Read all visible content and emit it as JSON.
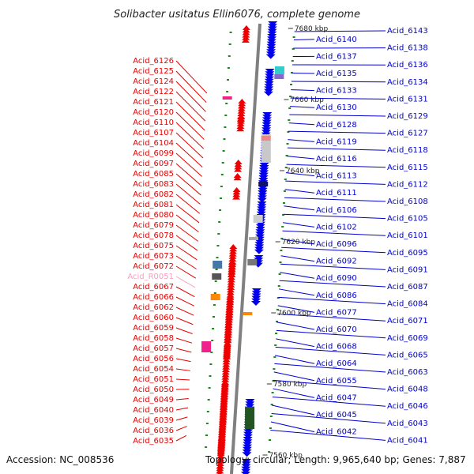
{
  "title": "Solibacter usitatus Ellin6076, complete genome",
  "footer": {
    "accession": "Accession: NC_008536",
    "topology": "Topology: circular; Length: 9,965,640 bp; Genes: 7,887"
  },
  "colors": {
    "left_labels": "#e60000",
    "left_label_pseudo": "#f4a0c0",
    "right_labels": "#0000cc",
    "backbone": "#808080",
    "forward_strand": "#ee0000",
    "reverse_strand": "#0000ee",
    "tick": "#1a8a1a"
  },
  "scale_labels": [
    "7680 kbp",
    "7660 kbp",
    "7640 kbp",
    "7620 kbp",
    "7600 kbp",
    "7580 kbp",
    "7560 kbp"
  ],
  "left_genes": [
    {
      "id": "Acid_6126"
    },
    {
      "id": "Acid_6125"
    },
    {
      "id": "Acid_6124"
    },
    {
      "id": "Acid_6122"
    },
    {
      "id": "Acid_6121"
    },
    {
      "id": "Acid_6120"
    },
    {
      "id": "Acid_6110"
    },
    {
      "id": "Acid_6107"
    },
    {
      "id": "Acid_6104"
    },
    {
      "id": "Acid_6099"
    },
    {
      "id": "Acid_6097"
    },
    {
      "id": "Acid_6085"
    },
    {
      "id": "Acid_6083"
    },
    {
      "id": "Acid_6082"
    },
    {
      "id": "Acid_6081"
    },
    {
      "id": "Acid_6080"
    },
    {
      "id": "Acid_6079"
    },
    {
      "id": "Acid_6078"
    },
    {
      "id": "Acid_6075"
    },
    {
      "id": "Acid_6073"
    },
    {
      "id": "Acid_6072"
    },
    {
      "id": "Acid_R0051",
      "pseudo": true
    },
    {
      "id": "Acid_6067"
    },
    {
      "id": "Acid_6066"
    },
    {
      "id": "Acid_6062"
    },
    {
      "id": "Acid_6060"
    },
    {
      "id": "Acid_6059"
    },
    {
      "id": "Acid_6058"
    },
    {
      "id": "Acid_6057"
    },
    {
      "id": "Acid_6056"
    },
    {
      "id": "Acid_6054"
    },
    {
      "id": "Acid_6051"
    },
    {
      "id": "Acid_6050"
    },
    {
      "id": "Acid_6049"
    },
    {
      "id": "Acid_6040"
    },
    {
      "id": "Acid_6039"
    },
    {
      "id": "Acid_6036"
    },
    {
      "id": "Acid_6035"
    }
  ],
  "right_genes": [
    "Acid_6143",
    "Acid_6140",
    "Acid_6138",
    "Acid_6137",
    "Acid_6136",
    "Acid_6135",
    "Acid_6134",
    "Acid_6133",
    "Acid_6131",
    "Acid_6130",
    "Acid_6129",
    "Acid_6128",
    "Acid_6127",
    "Acid_6119",
    "Acid_6118",
    "Acid_6116",
    "Acid_6115",
    "Acid_6113",
    "Acid_6112",
    "Acid_6111",
    "Acid_6108",
    "Acid_6106",
    "Acid_6105",
    "Acid_6102",
    "Acid_6101",
    "Acid_6096",
    "Acid_6095",
    "Acid_6092",
    "Acid_6091",
    "Acid_6090",
    "Acid_6087",
    "Acid_6086",
    "Acid_6084",
    "Acid_6077",
    "Acid_6071",
    "Acid_6070",
    "Acid_6069",
    "Acid_6068",
    "Acid_6065",
    "Acid_6064",
    "Acid_6063",
    "Acid_6055",
    "Acid_6048",
    "Acid_6047",
    "Acid_6046",
    "Acid_6045",
    "Acid_6043",
    "Acid_6042",
    "Acid_6041"
  ]
}
